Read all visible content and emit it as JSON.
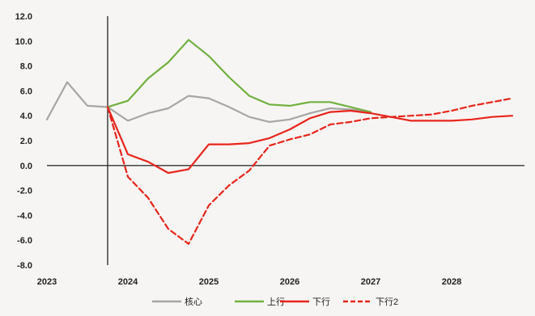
{
  "chart_data": {
    "type": "line",
    "title": "",
    "xlabel": "",
    "ylabel": "",
    "ylim": [
      -8.0,
      12.0
    ],
    "yticks": [
      -8.0,
      -6.0,
      -4.0,
      -2.0,
      0.0,
      2.0,
      4.0,
      6.0,
      8.0,
      10.0,
      12.0
    ],
    "ytick_labels": [
      "-8.0",
      "-6.0",
      "-4.0",
      "-2.0",
      "0.0",
      "2.0",
      "4.0",
      "6.0",
      "8.0",
      "10.0",
      "12.0"
    ],
    "xlim": [
      2023.0,
      2028.9
    ],
    "xticks": [
      2023,
      2024,
      2025,
      2026,
      2027,
      2028
    ],
    "xtick_labels": [
      "2023",
      "2024",
      "2025",
      "2026",
      "2027",
      "2028"
    ],
    "vertical_line_x": 2023.75,
    "grid": false,
    "legend_position": "bottom",
    "series": [
      {
        "name": "核心",
        "color": "#a6a6a6",
        "dash": "solid",
        "x": [
          2023.0,
          2023.25,
          2023.5,
          2023.75,
          2024.0,
          2024.25,
          2024.5,
          2024.75,
          2025.0,
          2025.25,
          2025.5,
          2025.75,
          2026.0,
          2026.25,
          2026.5,
          2026.75,
          2027.0
        ],
        "y": [
          3.7,
          6.7,
          4.8,
          4.7,
          3.6,
          4.2,
          4.6,
          5.6,
          5.4,
          4.7,
          3.9,
          3.5,
          3.7,
          4.2,
          4.6,
          4.5,
          4.3
        ]
      },
      {
        "name": "上行",
        "color": "#70b040",
        "dash": "solid",
        "x": [
          2023.75,
          2024.0,
          2024.25,
          2024.5,
          2024.75,
          2025.0,
          2025.25,
          2025.5,
          2025.75,
          2026.0,
          2026.25,
          2026.5,
          2026.75,
          2027.0
        ],
        "y": [
          4.7,
          5.2,
          7.0,
          8.3,
          10.1,
          8.8,
          7.1,
          5.6,
          4.9,
          4.8,
          5.1,
          5.1,
          4.7,
          4.3
        ]
      },
      {
        "name": "下行",
        "color": "#e8251c",
        "dash": "solid",
        "x": [
          2023.75,
          2024.0,
          2024.25,
          2024.5,
          2024.75,
          2025.0,
          2025.25,
          2025.5,
          2025.75,
          2026.0,
          2026.25,
          2026.5,
          2026.75,
          2027.0,
          2027.25,
          2027.5,
          2027.75,
          2028.0,
          2028.25,
          2028.5,
          2028.75
        ],
        "y": [
          4.7,
          0.9,
          0.3,
          -0.6,
          -0.3,
          1.7,
          1.7,
          1.8,
          2.2,
          2.9,
          3.8,
          4.3,
          4.4,
          4.2,
          3.9,
          3.6,
          3.6,
          3.6,
          3.7,
          3.9,
          4.0
        ]
      },
      {
        "name": "下行2",
        "color": "#e8251c",
        "dash": "dashed",
        "x": [
          2023.75,
          2024.0,
          2024.25,
          2024.5,
          2024.75,
          2025.0,
          2025.25,
          2025.5,
          2025.75,
          2026.0,
          2026.25,
          2026.5,
          2026.75,
          2027.0,
          2027.25,
          2027.5,
          2027.75,
          2028.0,
          2028.25,
          2028.5,
          2028.75
        ],
        "y": [
          4.7,
          -0.9,
          -2.6,
          -5.1,
          -6.3,
          -3.2,
          -1.6,
          -0.4,
          1.6,
          2.1,
          2.5,
          3.3,
          3.5,
          3.8,
          3.9,
          4.0,
          4.1,
          4.4,
          4.8,
          5.1,
          5.4
        ]
      }
    ]
  }
}
